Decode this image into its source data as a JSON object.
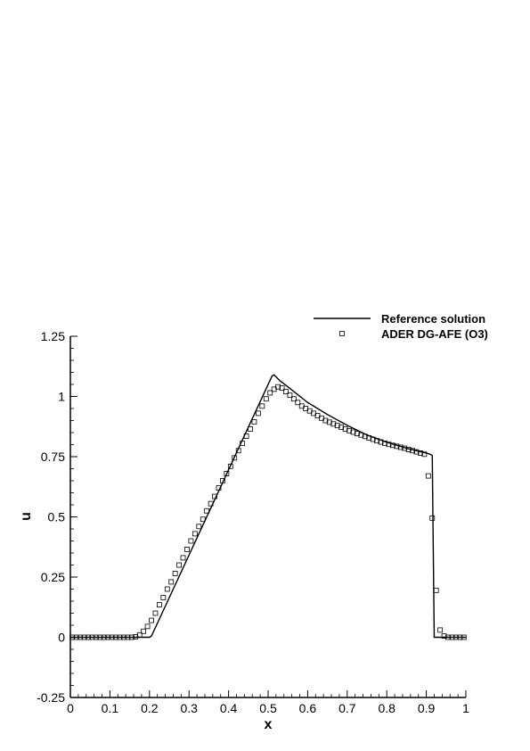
{
  "chart_data": {
    "type": "line",
    "xlabel": "x",
    "ylabel": "u",
    "xlim": [
      0,
      1
    ],
    "ylim": [
      -0.25,
      1.25
    ],
    "x_ticks": [
      0,
      0.1,
      0.2,
      0.3,
      0.4,
      0.5,
      0.6,
      0.7,
      0.8,
      0.9,
      1
    ],
    "x_tick_labels": [
      "0",
      "0.1",
      "0.2",
      "0.3",
      "0.4",
      "0.5",
      "0.6",
      "0.7",
      "0.8",
      "0.9",
      "1"
    ],
    "y_ticks": [
      -0.25,
      0,
      0.25,
      0.5,
      0.75,
      1,
      1.25
    ],
    "y_tick_labels": [
      "-0.25",
      "0",
      "0.25",
      "0.5",
      "0.75",
      "1",
      "1.25"
    ],
    "grid": false,
    "legend_position": "top-right",
    "series": [
      {
        "name": "Reference solution",
        "style": "line",
        "color": "#000000",
        "x": [
          0,
          0.2,
          0.205,
          0.51,
          0.515,
          0.53,
          0.55,
          0.6,
          0.65,
          0.7,
          0.75,
          0.8,
          0.85,
          0.9,
          0.91,
          0.915,
          0.92,
          1.0
        ],
        "y": [
          0,
          0,
          0.005,
          1.085,
          1.09,
          1.065,
          1.04,
          0.975,
          0.925,
          0.88,
          0.84,
          0.81,
          0.785,
          0.765,
          0.76,
          0.755,
          0,
          0
        ]
      },
      {
        "name": "ADER DG-AFE (O3)",
        "style": "markers",
        "marker": "square",
        "color": "#000000",
        "x": [
          0.005,
          0.015,
          0.025,
          0.035,
          0.045,
          0.055,
          0.065,
          0.075,
          0.085,
          0.095,
          0.105,
          0.115,
          0.125,
          0.135,
          0.145,
          0.155,
          0.165,
          0.175,
          0.185,
          0.195,
          0.205,
          0.215,
          0.225,
          0.235,
          0.245,
          0.255,
          0.265,
          0.275,
          0.285,
          0.295,
          0.305,
          0.315,
          0.325,
          0.335,
          0.345,
          0.355,
          0.365,
          0.375,
          0.385,
          0.395,
          0.405,
          0.415,
          0.425,
          0.435,
          0.445,
          0.455,
          0.465,
          0.475,
          0.485,
          0.495,
          0.505,
          0.515,
          0.525,
          0.535,
          0.545,
          0.555,
          0.565,
          0.575,
          0.585,
          0.595,
          0.605,
          0.615,
          0.625,
          0.635,
          0.645,
          0.655,
          0.665,
          0.675,
          0.685,
          0.695,
          0.705,
          0.715,
          0.725,
          0.735,
          0.745,
          0.755,
          0.765,
          0.775,
          0.785,
          0.795,
          0.805,
          0.815,
          0.825,
          0.835,
          0.845,
          0.855,
          0.865,
          0.875,
          0.885,
          0.895,
          0.905,
          0.915,
          0.925,
          0.935,
          0.945,
          0.955,
          0.965,
          0.975,
          0.985,
          0.995
        ],
        "y": [
          0,
          0,
          0,
          0,
          0,
          0,
          0,
          0,
          0,
          0,
          0,
          0,
          0,
          0,
          0,
          0,
          0.002,
          0.01,
          0.025,
          0.045,
          0.07,
          0.1,
          0.135,
          0.165,
          0.2,
          0.23,
          0.265,
          0.3,
          0.33,
          0.365,
          0.4,
          0.43,
          0.46,
          0.49,
          0.525,
          0.555,
          0.585,
          0.62,
          0.65,
          0.68,
          0.71,
          0.745,
          0.775,
          0.805,
          0.835,
          0.865,
          0.895,
          0.93,
          0.96,
          0.99,
          1.015,
          1.03,
          1.04,
          1.035,
          1.02,
          1.005,
          0.99,
          0.975,
          0.96,
          0.95,
          0.94,
          0.93,
          0.92,
          0.91,
          0.9,
          0.893,
          0.886,
          0.879,
          0.872,
          0.865,
          0.858,
          0.852,
          0.846,
          0.84,
          0.834,
          0.828,
          0.822,
          0.816,
          0.811,
          0.806,
          0.801,
          0.797,
          0.793,
          0.789,
          0.785,
          0.78,
          0.775,
          0.77,
          0.765,
          0.76,
          0.67,
          0.495,
          0.195,
          0.03,
          0.005,
          0,
          0,
          0,
          0,
          0
        ]
      }
    ]
  }
}
